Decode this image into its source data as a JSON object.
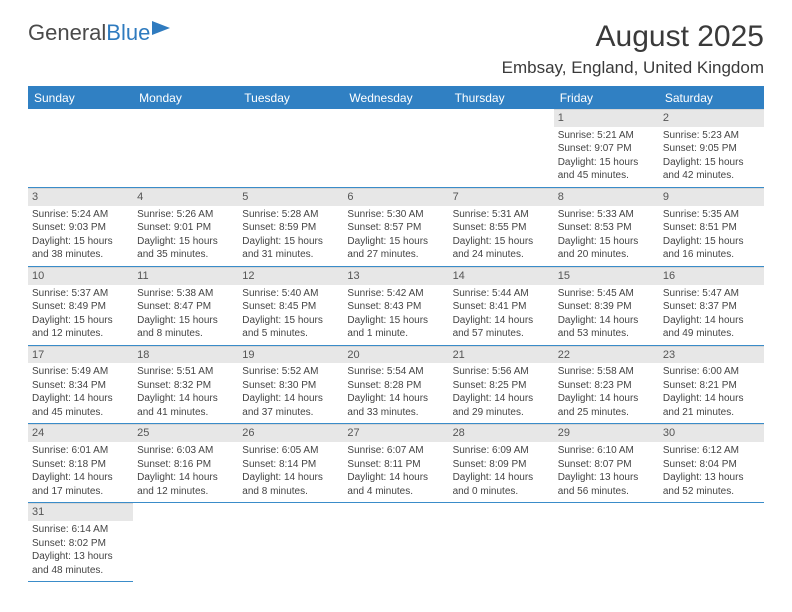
{
  "logo": {
    "part1": "General",
    "part2": "Blue"
  },
  "title": "August 2025",
  "location": "Embsay, England, United Kingdom",
  "weekdays": [
    "Sunday",
    "Monday",
    "Tuesday",
    "Wednesday",
    "Thursday",
    "Friday",
    "Saturday"
  ],
  "colors": {
    "header_bg": "#3080c3",
    "header_text": "#ffffff",
    "daynum_bg": "#e7e7e7",
    "line": "#3a8cc9",
    "logo_blue": "#2f7bbf"
  },
  "first_weekday_index": 5,
  "days": [
    {
      "n": 1,
      "sunrise": "5:21 AM",
      "sunset": "9:07 PM",
      "dayh": 15,
      "daym": 45
    },
    {
      "n": 2,
      "sunrise": "5:23 AM",
      "sunset": "9:05 PM",
      "dayh": 15,
      "daym": 42
    },
    {
      "n": 3,
      "sunrise": "5:24 AM",
      "sunset": "9:03 PM",
      "dayh": 15,
      "daym": 38
    },
    {
      "n": 4,
      "sunrise": "5:26 AM",
      "sunset": "9:01 PM",
      "dayh": 15,
      "daym": 35
    },
    {
      "n": 5,
      "sunrise": "5:28 AM",
      "sunset": "8:59 PM",
      "dayh": 15,
      "daym": 31
    },
    {
      "n": 6,
      "sunrise": "5:30 AM",
      "sunset": "8:57 PM",
      "dayh": 15,
      "daym": 27
    },
    {
      "n": 7,
      "sunrise": "5:31 AM",
      "sunset": "8:55 PM",
      "dayh": 15,
      "daym": 24
    },
    {
      "n": 8,
      "sunrise": "5:33 AM",
      "sunset": "8:53 PM",
      "dayh": 15,
      "daym": 20
    },
    {
      "n": 9,
      "sunrise": "5:35 AM",
      "sunset": "8:51 PM",
      "dayh": 15,
      "daym": 16
    },
    {
      "n": 10,
      "sunrise": "5:37 AM",
      "sunset": "8:49 PM",
      "dayh": 15,
      "daym": 12
    },
    {
      "n": 11,
      "sunrise": "5:38 AM",
      "sunset": "8:47 PM",
      "dayh": 15,
      "daym": 8
    },
    {
      "n": 12,
      "sunrise": "5:40 AM",
      "sunset": "8:45 PM",
      "dayh": 15,
      "daym": 5
    },
    {
      "n": 13,
      "sunrise": "5:42 AM",
      "sunset": "8:43 PM",
      "dayh": 15,
      "daym": 1
    },
    {
      "n": 14,
      "sunrise": "5:44 AM",
      "sunset": "8:41 PM",
      "dayh": 14,
      "daym": 57
    },
    {
      "n": 15,
      "sunrise": "5:45 AM",
      "sunset": "8:39 PM",
      "dayh": 14,
      "daym": 53
    },
    {
      "n": 16,
      "sunrise": "5:47 AM",
      "sunset": "8:37 PM",
      "dayh": 14,
      "daym": 49
    },
    {
      "n": 17,
      "sunrise": "5:49 AM",
      "sunset": "8:34 PM",
      "dayh": 14,
      "daym": 45
    },
    {
      "n": 18,
      "sunrise": "5:51 AM",
      "sunset": "8:32 PM",
      "dayh": 14,
      "daym": 41
    },
    {
      "n": 19,
      "sunrise": "5:52 AM",
      "sunset": "8:30 PM",
      "dayh": 14,
      "daym": 37
    },
    {
      "n": 20,
      "sunrise": "5:54 AM",
      "sunset": "8:28 PM",
      "dayh": 14,
      "daym": 33
    },
    {
      "n": 21,
      "sunrise": "5:56 AM",
      "sunset": "8:25 PM",
      "dayh": 14,
      "daym": 29
    },
    {
      "n": 22,
      "sunrise": "5:58 AM",
      "sunset": "8:23 PM",
      "dayh": 14,
      "daym": 25
    },
    {
      "n": 23,
      "sunrise": "6:00 AM",
      "sunset": "8:21 PM",
      "dayh": 14,
      "daym": 21
    },
    {
      "n": 24,
      "sunrise": "6:01 AM",
      "sunset": "8:18 PM",
      "dayh": 14,
      "daym": 17
    },
    {
      "n": 25,
      "sunrise": "6:03 AM",
      "sunset": "8:16 PM",
      "dayh": 14,
      "daym": 12
    },
    {
      "n": 26,
      "sunrise": "6:05 AM",
      "sunset": "8:14 PM",
      "dayh": 14,
      "daym": 8
    },
    {
      "n": 27,
      "sunrise": "6:07 AM",
      "sunset": "8:11 PM",
      "dayh": 14,
      "daym": 4
    },
    {
      "n": 28,
      "sunrise": "6:09 AM",
      "sunset": "8:09 PM",
      "dayh": 14,
      "daym": 0
    },
    {
      "n": 29,
      "sunrise": "6:10 AM",
      "sunset": "8:07 PM",
      "dayh": 13,
      "daym": 56
    },
    {
      "n": 30,
      "sunrise": "6:12 AM",
      "sunset": "8:04 PM",
      "dayh": 13,
      "daym": 52
    },
    {
      "n": 31,
      "sunrise": "6:14 AM",
      "sunset": "8:02 PM",
      "dayh": 13,
      "daym": 48
    }
  ]
}
